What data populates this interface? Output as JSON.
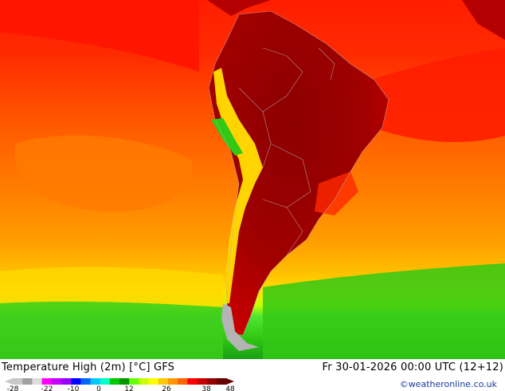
{
  "title": "Temperature High (2m) [°C] GFS",
  "valid_time": "Fr 30-01-2026 00:00 UTC (12+12)",
  "credit": "©weatheronline.co.uk",
  "legend": {
    "ticks": [
      "-28",
      "-22",
      "-10",
      "0",
      "12",
      "26",
      "38",
      "48"
    ],
    "colors": [
      "#c8c8c8",
      "#a0a0a0",
      "#dcdcdc",
      "#ff00ff",
      "#c800ff",
      "#9600ff",
      "#0000ff",
      "#0064ff",
      "#00c8ff",
      "#00ffc8",
      "#00c800",
      "#009600",
      "#64ff00",
      "#c8ff00",
      "#ffff00",
      "#ffc800",
      "#ff9600",
      "#ff6400",
      "#ff0000",
      "#c80000",
      "#960000",
      "#640000"
    ]
  },
  "colors": {
    "ocean_north": "#ff1e00",
    "ocean_mid": "#ff6a00",
    "ocean_south": "#ffb300",
    "cold_band": "#3ccd1a",
    "land_hot": "#aa0000",
    "land_hottest": "#8c0000",
    "andes": "#ffd400",
    "credit": "#1a3a9c"
  }
}
